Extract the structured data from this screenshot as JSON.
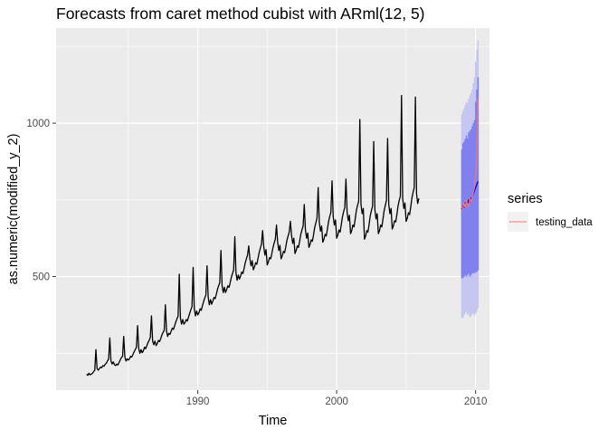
{
  "chart_data": {
    "type": "line",
    "title": "Forecasts from caret method cubist with ARml(12,  5)",
    "xlabel": "Time",
    "ylabel": "as.numeric(modified_y_2)",
    "xlim": [
      1979.8,
      2011.0
    ],
    "ylim": [
      130,
      1310
    ],
    "x_ticks": [
      1990,
      2000,
      2010
    ],
    "x_tick_labels": [
      "1990",
      "2000",
      "2010"
    ],
    "y_ticks": [
      500,
      1000
    ],
    "y_tick_labels": [
      "500",
      "1000"
    ],
    "grid": true,
    "legend": {
      "title": "series",
      "position": "right",
      "entries": [
        {
          "label": "testing_data",
          "color": "#F8766D"
        }
      ]
    },
    "series": [
      {
        "role": "history",
        "color": "#000000",
        "start": 1982.0,
        "frequency": 12,
        "values": [
          182,
          178,
          185,
          180,
          182,
          185,
          190,
          195,
          262,
          200,
          195,
          200,
          205,
          203,
          210,
          208,
          214,
          218,
          225,
          232,
          300,
          225,
          215,
          222,
          213,
          210,
          215,
          212,
          220,
          228,
          236,
          240,
          305,
          238,
          225,
          232,
          228,
          232,
          240,
          238,
          246,
          255,
          262,
          270,
          340,
          265,
          250,
          262,
          252,
          258,
          270,
          265,
          275,
          285,
          292,
          302,
          372,
          290,
          278,
          290,
          275,
          282,
          292,
          288,
          298,
          310,
          318,
          325,
          408,
          322,
          305,
          315,
          312,
          322,
          332,
          328,
          340,
          352,
          362,
          372,
          508,
          365,
          345,
          360,
          345,
          350,
          360,
          355,
          368,
          380,
          392,
          402,
          530,
          395,
          372,
          388,
          375,
          382,
          395,
          390,
          405,
          418,
          430,
          440,
          535,
          432,
          408,
          425,
          410,
          420,
          432,
          428,
          442,
          458,
          470,
          480,
          585,
          470,
          448,
          465,
          448,
          458,
          470,
          465,
          480,
          498,
          510,
          522,
          630,
          512,
          488,
          505,
          492,
          502,
          515,
          510,
          526,
          545,
          558,
          570,
          600,
          558,
          535,
          552,
          522,
          532,
          545,
          540,
          558,
          578,
          592,
          605,
          650,
          598,
          570,
          588,
          538,
          548,
          562,
          558,
          575,
          595,
          610,
          622,
          668,
          612,
          585,
          602,
          558,
          568,
          582,
          578,
          596,
          618,
          632,
          645,
          680,
          635,
          608,
          625,
          575,
          585,
          600,
          595,
          615,
          638,
          652,
          665,
          735,
          652,
          625,
          642,
          595,
          605,
          620,
          615,
          636,
          660,
          675,
          690,
          790,
          676,
          648,
          665,
          612,
          622,
          638,
          632,
          655,
          680,
          696,
          710,
          812,
          695,
          668,
          685,
          625,
          635,
          652,
          645,
          670,
          695,
          712,
          725,
          818,
          710,
          682,
          700,
          640,
          650,
          668,
          662,
          688,
          715,
          732,
          745,
          1012,
          735,
          705,
          722,
          622,
          632,
          650,
          645,
          670,
          698,
          715,
          730,
          940,
          718,
          688,
          705,
          640,
          650,
          668,
          662,
          688,
          715,
          732,
          748,
          950,
          735,
          705,
          722,
          655,
          665,
          682,
          678,
          702,
          730,
          748,
          762,
          1090,
          755,
          722,
          740,
          680,
          690,
          708,
          702,
          728,
          756,
          775,
          790,
          1085,
          770,
          738,
          755
        ]
      },
      {
        "role": "forecast",
        "color": "#0000FF",
        "start": 2009.0,
        "frequency": 12,
        "values": [
          720,
          730,
          725,
          740,
          745,
          738,
          750,
          742,
          755,
          760,
          770,
          780,
          790,
          800,
          810
        ],
        "pi80_lower": [
          495,
          495,
          500,
          505,
          500,
          505,
          510,
          500,
          505,
          510,
          512,
          510,
          515,
          515,
          520
        ],
        "pi80_upper": [
          915,
          935,
          940,
          950,
          960,
          950,
          970,
          975,
          980,
          990,
          1000,
          1010,
          1070,
          1110,
          1150
        ],
        "pi95_lower": [
          365,
          365,
          375,
          380,
          385,
          375,
          380,
          368,
          372,
          378,
          380,
          372,
          380,
          388,
          398
        ],
        "pi95_upper": [
          1030,
          1040,
          1050,
          1060,
          1070,
          1065,
          1080,
          1090,
          1100,
          1110,
          1130,
          1150,
          1200,
          1240,
          1270
        ]
      },
      {
        "name": "testing_data",
        "role": "test",
        "color": "#F8766D",
        "start": 2009.0,
        "frequency": 12,
        "values": [
          730,
          718,
          740,
          725,
          750,
          735,
          728,
          755,
          742,
          760,
          775,
          790,
          820,
          880,
          1080
        ]
      }
    ]
  }
}
